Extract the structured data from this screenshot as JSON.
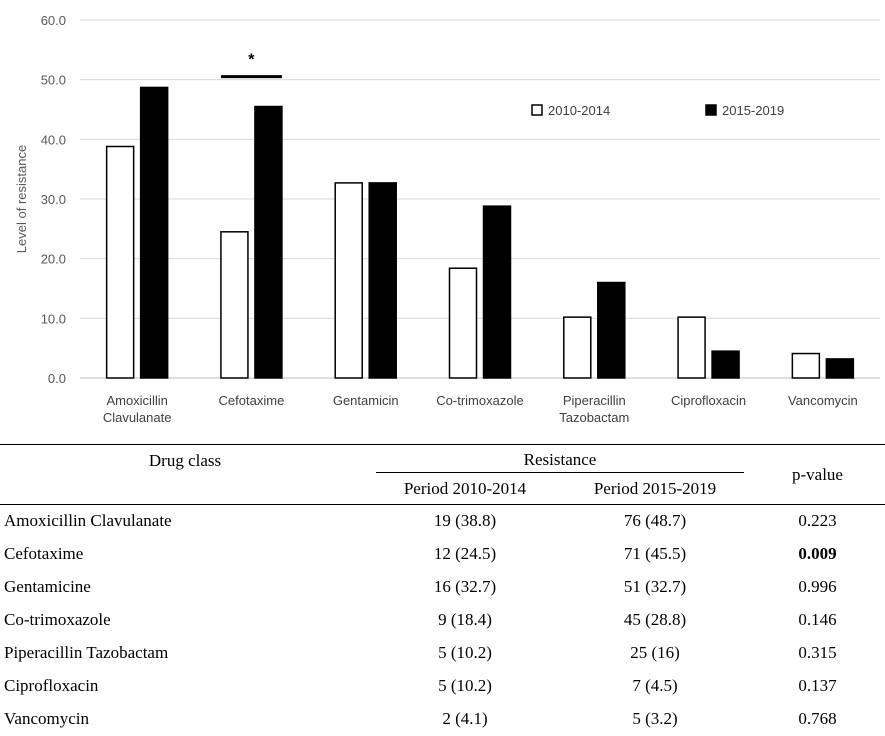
{
  "chart_data": {
    "type": "bar",
    "ylabel": "Level of resistance",
    "ylim": [
      0,
      60
    ],
    "yticks": [
      "0.0",
      "10.0",
      "20.0",
      "30.0",
      "40.0",
      "50.0",
      "60.0"
    ],
    "grid": true,
    "legend_position": "top-right",
    "categories": [
      [
        "Amoxicillin",
        "Clavulanate"
      ],
      [
        "Cefotaxime"
      ],
      [
        "Gentamicin"
      ],
      [
        "Co-trimoxazole"
      ],
      [
        "Piperacillin",
        "Tazobactam"
      ],
      [
        "Ciprofloxacin"
      ],
      [
        "Vancomycin"
      ]
    ],
    "series": [
      {
        "name": "2010-2014",
        "color": "#ffffff",
        "values": [
          38.8,
          24.5,
          32.7,
          18.4,
          10.2,
          10.2,
          4.1
        ]
      },
      {
        "name": "2015-2019",
        "color": "#000000",
        "values": [
          48.7,
          45.5,
          32.7,
          28.8,
          16,
          4.5,
          3.2
        ]
      }
    ],
    "annotations": [
      {
        "text": "*",
        "category_index": 1,
        "y": 50.5
      }
    ]
  },
  "table": {
    "headers": {
      "drug_class": "Drug class",
      "resistance": "Resistance",
      "period1": "Period 2010-2014",
      "period2": "Period 2015-2019",
      "pvalue": "p-value"
    },
    "rows": [
      {
        "drug": "Amoxicillin Clavulanate",
        "p1": "19 (38.8)",
        "p2": "76 (48.7)",
        "p": "0.223"
      },
      {
        "drug": "Cefotaxime",
        "p1": "12 (24.5)",
        "p2": "71 (45.5)",
        "p": "0.009"
      },
      {
        "drug": "Gentamicine",
        "p1": "16 (32.7)",
        "p2": "51 (32.7)",
        "p": "0.996"
      },
      {
        "drug": "Co-trimoxazole",
        "p1": "9 (18.4)",
        "p2": "45 (28.8)",
        "p": "0.146"
      },
      {
        "drug": "Piperacillin Tazobactam",
        "p1": "5 (10.2)",
        "p2": "25 (16)",
        "p": "0.315"
      },
      {
        "drug": "Ciprofloxacin",
        "p1": "5 (10.2)",
        "p2": "7 (4.5)",
        "p": "0.137"
      },
      {
        "drug": "Vancomycin",
        "p1": "2 (4.1)",
        "p2": "5 (3.2)",
        "p": "0.768"
      }
    ]
  }
}
